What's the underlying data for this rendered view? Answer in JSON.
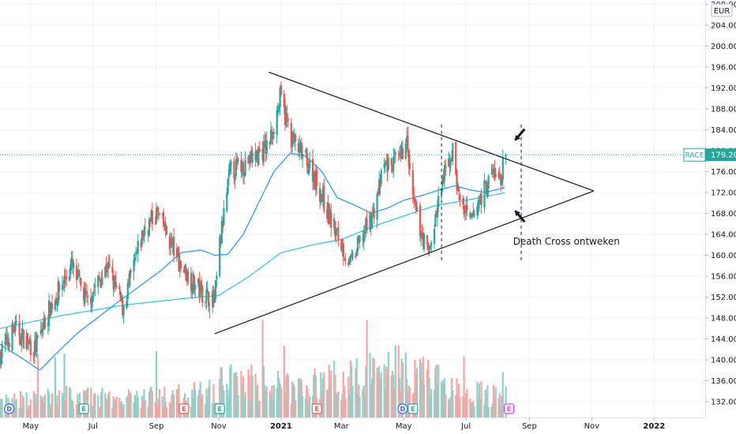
{
  "chart_data": {
    "type": "candlestick",
    "currency": "EUR",
    "symbol": "RACE",
    "last_price": 179.2,
    "last_price_label": "179.20",
    "ylim": [
      129,
      208.8
    ],
    "y_ticks": [
      132,
      136,
      140,
      144,
      148,
      152,
      156,
      160,
      164,
      168,
      172,
      176,
      180,
      184,
      188,
      192,
      196,
      200,
      204,
      208
    ],
    "y_tick_labels": [
      "132.00",
      "136.00",
      "140.00",
      "144.00",
      "148.00",
      "152.00",
      "156.00",
      "160.00",
      "164.00",
      "168.00",
      "172.00",
      "176.00",
      "180.00",
      "184.00",
      "188.00",
      "192.00",
      "196.00",
      "200.00",
      "204.00",
      "208.00"
    ],
    "x_start": "2020-04-01",
    "x_end": "2022-02-20",
    "x_ticks": [
      {
        "label": "May",
        "date": "2020-05-01"
      },
      {
        "label": "Jul",
        "date": "2020-07-01"
      },
      {
        "label": "Sep",
        "date": "2020-09-01"
      },
      {
        "label": "Nov",
        "date": "2020-11-01"
      },
      {
        "label": "2021",
        "date": "2021-01-01",
        "bold": true
      },
      {
        "label": "Mar",
        "date": "2021-03-01"
      },
      {
        "label": "May",
        "date": "2021-05-01"
      },
      {
        "label": "Jul",
        "date": "2021-07-01"
      },
      {
        "label": "Sep",
        "date": "2021-09-01"
      },
      {
        "label": "Nov",
        "date": "2021-11-01"
      },
      {
        "label": "2022",
        "date": "2022-01-01",
        "bold": true
      }
    ],
    "price_anchors": [
      [
        "2020-04-01",
        141
      ],
      [
        "2020-04-15",
        146
      ],
      [
        "2020-05-05",
        142
      ],
      [
        "2020-05-20",
        150
      ],
      [
        "2020-06-10",
        158
      ],
      [
        "2020-06-25",
        151
      ],
      [
        "2020-07-15",
        158
      ],
      [
        "2020-07-30",
        150
      ],
      [
        "2020-08-20",
        165
      ],
      [
        "2020-09-02",
        168
      ],
      [
        "2020-09-25",
        158
      ],
      [
        "2020-10-10",
        154
      ],
      [
        "2020-10-28",
        151
      ],
      [
        "2020-11-02",
        162
      ],
      [
        "2020-11-12",
        176
      ],
      [
        "2020-12-01",
        178
      ],
      [
        "2020-12-20",
        181
      ],
      [
        "2020-12-31",
        190
      ],
      [
        "2021-01-12",
        182
      ],
      [
        "2021-02-01",
        176
      ],
      [
        "2021-02-20",
        166
      ],
      [
        "2021-03-10",
        158
      ],
      [
        "2021-03-20",
        163
      ],
      [
        "2021-04-01",
        168
      ],
      [
        "2021-04-12",
        177
      ],
      [
        "2021-04-28",
        178
      ],
      [
        "2021-05-03",
        183
      ],
      [
        "2021-05-10",
        170
      ],
      [
        "2021-05-25",
        160
      ],
      [
        "2021-06-08",
        174
      ],
      [
        "2021-06-18",
        180
      ],
      [
        "2021-06-24",
        171
      ],
      [
        "2021-07-05",
        166
      ],
      [
        "2021-07-15",
        171
      ],
      [
        "2021-07-28",
        176
      ],
      [
        "2021-08-03",
        174
      ],
      [
        "2021-08-09",
        179.2
      ]
    ],
    "volume_anchors": [
      [
        "2020-04-01",
        0.25
      ],
      [
        "2020-06-01",
        0.35
      ],
      [
        "2020-08-01",
        0.3
      ],
      [
        "2020-10-20",
        0.4
      ],
      [
        "2020-11-10",
        0.65
      ],
      [
        "2021-01-01",
        0.5
      ],
      [
        "2021-03-05",
        0.6
      ],
      [
        "2021-05-05",
        0.9
      ],
      [
        "2021-06-15",
        0.45
      ],
      [
        "2021-08-09",
        0.35
      ]
    ],
    "sma_fast_anchors": [
      [
        "2020-04-01",
        143
      ],
      [
        "2020-04-25",
        140
      ],
      [
        "2020-05-10",
        138
      ],
      [
        "2020-05-25",
        141
      ],
      [
        "2020-06-15",
        145
      ],
      [
        "2020-07-05",
        148
      ],
      [
        "2020-07-25",
        151
      ],
      [
        "2020-08-15",
        154
      ],
      [
        "2020-09-05",
        157
      ],
      [
        "2020-09-25",
        160.5
      ],
      [
        "2020-10-15",
        161
      ],
      [
        "2020-10-28",
        160
      ],
      [
        "2020-11-10",
        160.2
      ],
      [
        "2020-11-25",
        164
      ],
      [
        "2020-12-10",
        170
      ],
      [
        "2020-12-25",
        176
      ],
      [
        "2021-01-10",
        179.5
      ],
      [
        "2021-01-25",
        179
      ],
      [
        "2021-02-10",
        176
      ],
      [
        "2021-02-25",
        171
      ],
      [
        "2021-03-15",
        169.5
      ],
      [
        "2021-03-30",
        168
      ],
      [
        "2021-04-15",
        169
      ],
      [
        "2021-05-01",
        170.5
      ],
      [
        "2021-05-20",
        171.5
      ],
      [
        "2021-06-05",
        172.5
      ],
      [
        "2021-06-20",
        173.3
      ],
      [
        "2021-07-05",
        172.5
      ],
      [
        "2021-07-20",
        172
      ],
      [
        "2021-08-09",
        173
      ]
    ],
    "sma_slow_anchors": [
      [
        "2020-04-01",
        146
      ],
      [
        "2020-06-01",
        148.5
      ],
      [
        "2020-08-01",
        150.5
      ],
      [
        "2020-10-01",
        151.8
      ],
      [
        "2020-11-01",
        152.3
      ],
      [
        "2020-12-01",
        156
      ],
      [
        "2021-01-01",
        160.5
      ],
      [
        "2021-02-01",
        162
      ],
      [
        "2021-03-01",
        163
      ],
      [
        "2021-04-01",
        165.5
      ],
      [
        "2021-05-01",
        167.5
      ],
      [
        "2021-06-01",
        169.5
      ],
      [
        "2021-07-01",
        170.5
      ],
      [
        "2021-08-09",
        172
      ]
    ],
    "trendlines": [
      {
        "name": "upper",
        "from": [
          "2020-12-20",
          195
        ],
        "to": [
          "2021-11-03",
          172.3
        ]
      },
      {
        "name": "lower",
        "from": [
          "2020-10-28",
          145
        ],
        "to": [
          "2021-11-03",
          172.3
        ]
      }
    ],
    "vertical_markers": [
      "2021-06-07",
      "2021-08-24"
    ],
    "vertical_marker_range": [
      158.5,
      185
    ],
    "arrows": [
      {
        "direction": "down-left",
        "tip": [
          "2021-08-18",
          182
        ]
      },
      {
        "direction": "up-left",
        "tip": [
          "2021-08-18",
          168.5
        ]
      }
    ],
    "annotations": [
      {
        "text": "Death Cross ontweken",
        "date": "2021-08-16",
        "value": 162
      }
    ],
    "event_badges": [
      {
        "type": "D",
        "date": "2020-04-10",
        "color": "#2962ff"
      },
      {
        "type": "E",
        "date": "2020-06-22",
        "color": "#26a69a"
      },
      {
        "type": "E",
        "date": "2020-09-28",
        "color": "#ef5350"
      },
      {
        "type": "E",
        "date": "2020-11-02",
        "color": "#26a69a"
      },
      {
        "type": "E",
        "date": "2021-02-05",
        "color": "#ef5350"
      },
      {
        "type": "D",
        "date": "2021-04-30",
        "color": "#2962ff"
      },
      {
        "type": "E",
        "date": "2021-05-10",
        "color": "#26a69a"
      },
      {
        "type": "E",
        "date": "2021-08-12",
        "color": "#e040fb"
      }
    ],
    "colors": {
      "up": "#26a69a",
      "down": "#ef5350",
      "volume_up": "#8fd1c9",
      "volume_down": "#f7a6a4",
      "sma_fast": "#2196f3",
      "sma_slow": "#26c6da",
      "trendline": "#131722",
      "last_price": "#26a69a",
      "grid": "#f0f3fa"
    },
    "grid": true
  }
}
